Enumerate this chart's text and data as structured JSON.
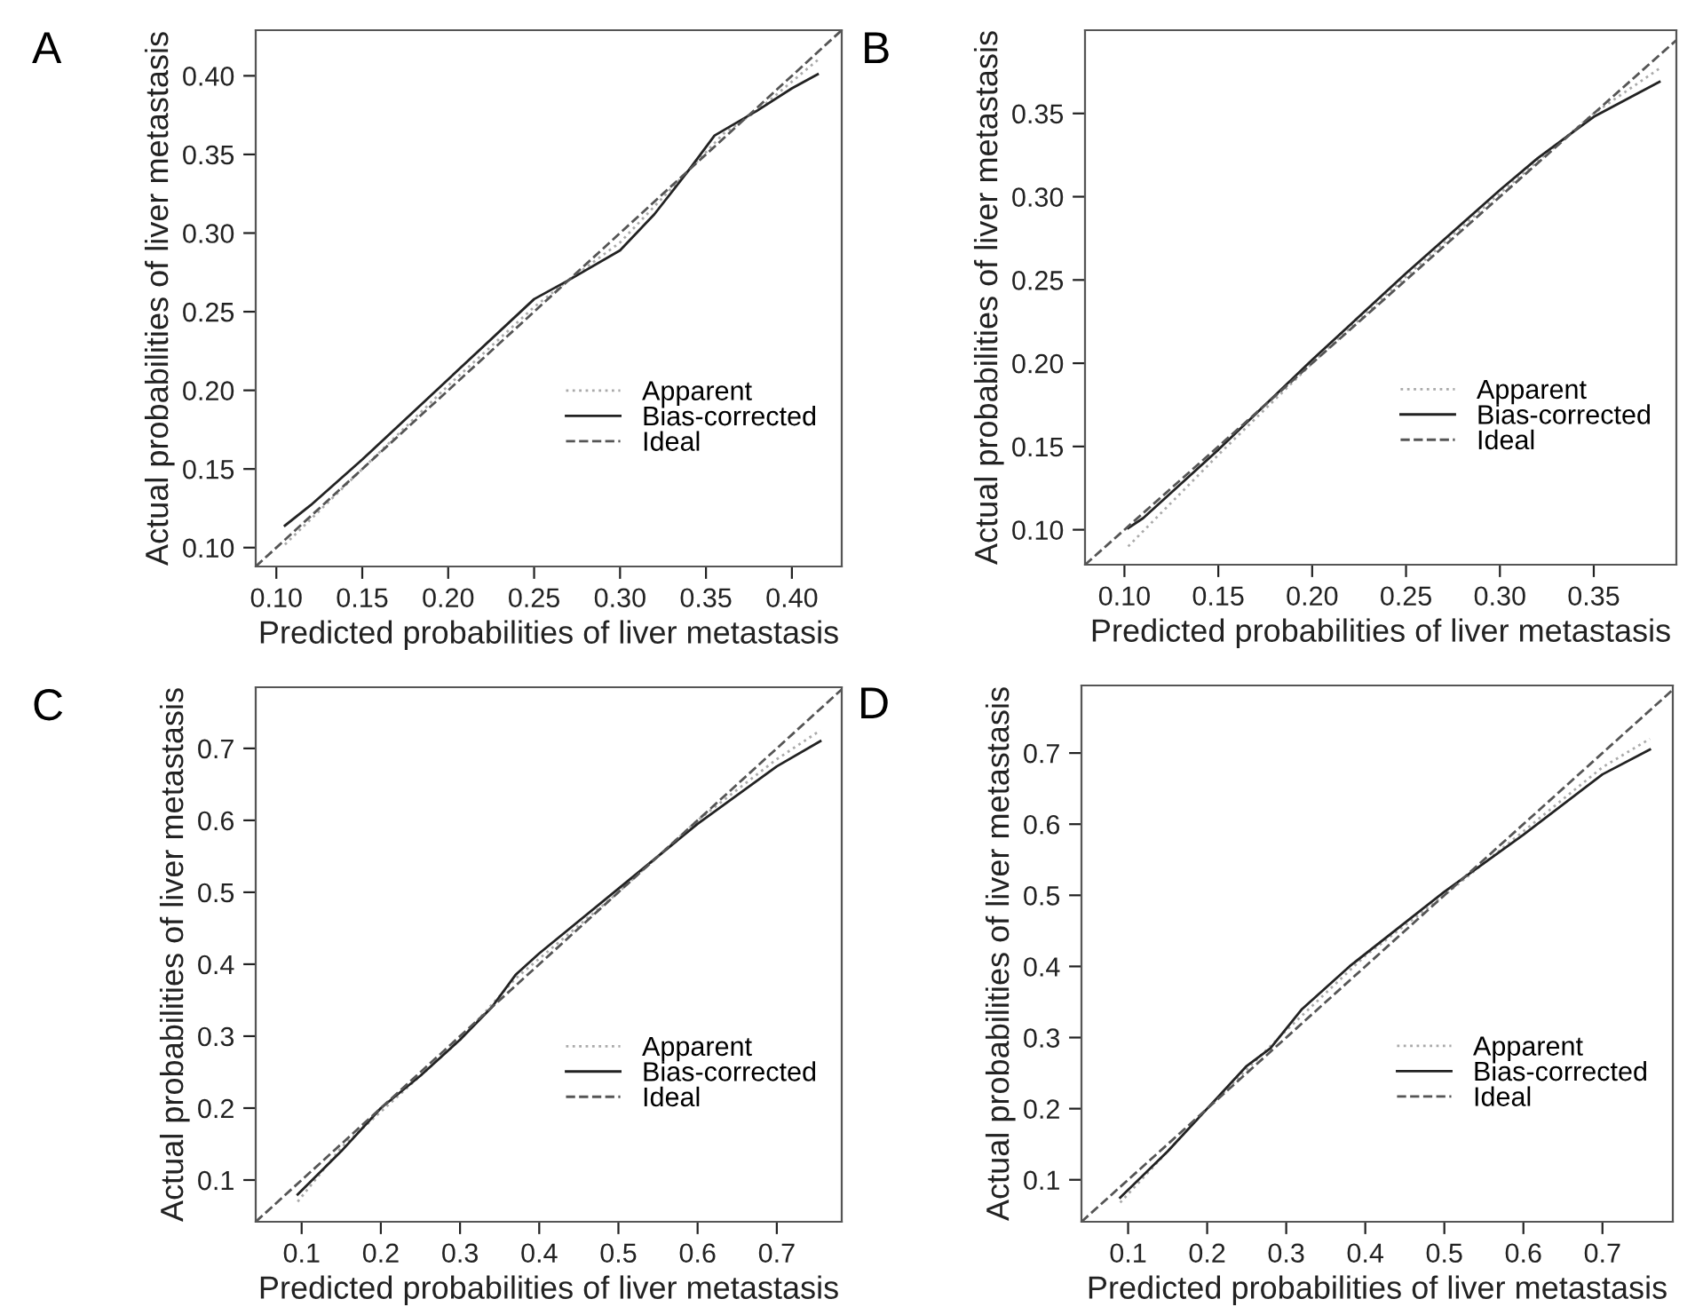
{
  "chart_data": [
    {
      "type": "line",
      "title": "A",
      "xlabel": "Predicted probabilities of liver metastasis",
      "ylabel": "Actual probabilities of liver metastasis",
      "xlim": [
        0.088,
        0.429
      ],
      "ylim": [
        0.088,
        0.429
      ],
      "xticks": [
        {
          "value": 0.1,
          "label": "0.10"
        },
        0.15,
        {
          "value": 0.2,
          "label": "0.20"
        },
        0.25,
        {
          "value": 0.3,
          "label": "0.30"
        },
        0.35,
        {
          "value": 0.4,
          "label": "0.40"
        }
      ],
      "yticks": [
        {
          "value": 0.1,
          "label": "0.10"
        },
        0.15,
        {
          "value": 0.2,
          "label": "0.20"
        },
        0.25,
        {
          "value": 0.3,
          "label": "0.30"
        },
        0.35,
        {
          "value": 0.4,
          "label": "0.40"
        }
      ],
      "grid": false,
      "legend": "bottom right",
      "marker": "none",
      "series": [
        {
          "name": "Apparent",
          "color": "#aaaaaa",
          "line_style": "dotted",
          "x": [
            0.105,
            0.15,
            0.2,
            0.25,
            0.27,
            0.3,
            0.34,
            0.36,
            0.38,
            0.415
          ],
          "values": [
            0.102,
            0.15,
            0.203,
            0.253,
            0.27,
            0.294,
            0.34,
            0.363,
            0.378,
            0.41
          ]
        },
        {
          "name": "Bias-corrected",
          "color": "#222222",
          "line_style": "solid",
          "x": [
            0.105,
            0.12,
            0.15,
            0.2,
            0.25,
            0.27,
            0.3,
            0.32,
            0.34,
            0.355,
            0.38,
            0.4,
            0.415
          ],
          "values": [
            0.114,
            0.127,
            0.156,
            0.207,
            0.258,
            0.27,
            0.289,
            0.312,
            0.34,
            0.362,
            0.378,
            0.392,
            0.401
          ]
        },
        {
          "name": "Ideal",
          "color": "#555555",
          "line_style": "dashed",
          "x": [
            0.088,
            0.429
          ],
          "values": [
            0.088,
            0.429
          ]
        }
      ]
    },
    {
      "type": "line",
      "title": "B",
      "xlabel": "Predicted probabilities of liver metastasis",
      "ylabel": "Actual probabilities of liver metastasis",
      "xlim": [
        0.079,
        0.394
      ],
      "ylim": [
        0.079,
        0.4
      ],
      "xticks": [
        {
          "value": 0.1,
          "label": "0.10"
        },
        0.15,
        {
          "value": 0.2,
          "label": "0.20"
        },
        0.25,
        {
          "value": 0.3,
          "label": "0.30"
        },
        0.35
      ],
      "yticks": [
        {
          "value": 0.1,
          "label": "0.10"
        },
        0.15,
        {
          "value": 0.2,
          "label": "0.20"
        },
        0.25,
        {
          "value": 0.3,
          "label": "0.30"
        },
        0.35
      ],
      "grid": false,
      "legend": "bottom right",
      "marker": "none",
      "series": [
        {
          "name": "Apparent",
          "color": "#aaaaaa",
          "line_style": "dotted",
          "x": [
            0.102,
            0.15,
            0.2,
            0.25,
            0.3,
            0.35,
            0.385
          ],
          "values": [
            0.09,
            0.145,
            0.2,
            0.252,
            0.302,
            0.35,
            0.377
          ]
        },
        {
          "name": "Bias-corrected",
          "color": "#222222",
          "line_style": "solid",
          "x": [
            0.102,
            0.11,
            0.15,
            0.2,
            0.25,
            0.3,
            0.32,
            0.35,
            0.37,
            0.385
          ],
          "values": [
            0.101,
            0.107,
            0.148,
            0.202,
            0.254,
            0.304,
            0.323,
            0.348,
            0.36,
            0.369
          ]
        },
        {
          "name": "Ideal",
          "color": "#555555",
          "line_style": "dashed",
          "x": [
            0.079,
            0.394
          ],
          "values": [
            0.079,
            0.394
          ]
        }
      ]
    },
    {
      "type": "line",
      "title": "C",
      "xlabel": "Predicted probabilities of liver metastasis",
      "ylabel": "Actual probabilities of liver metastasis",
      "xlim": [
        0.042,
        0.782
      ],
      "ylim": [
        0.042,
        0.785
      ],
      "xticks": [
        0.1,
        0.2,
        0.3,
        0.4,
        0.5,
        0.6,
        0.7
      ],
      "yticks": [
        0.1,
        0.2,
        0.3,
        0.4,
        0.5,
        0.6,
        0.7
      ],
      "grid": false,
      "legend": "bottom right",
      "marker": "none",
      "series": [
        {
          "name": "Apparent",
          "color": "#aaaaaa",
          "line_style": "dotted",
          "x": [
            0.095,
            0.15,
            0.3,
            0.37,
            0.5,
            0.6,
            0.7,
            0.755
          ],
          "values": [
            0.07,
            0.145,
            0.295,
            0.38,
            0.5,
            0.6,
            0.685,
            0.725
          ]
        },
        {
          "name": "Bias-corrected",
          "color": "#222222",
          "line_style": "solid",
          "x": [
            0.095,
            0.15,
            0.2,
            0.25,
            0.3,
            0.34,
            0.37,
            0.4,
            0.5,
            0.6,
            0.7,
            0.755
          ],
          "values": [
            0.08,
            0.14,
            0.2,
            0.245,
            0.295,
            0.34,
            0.385,
            0.415,
            0.505,
            0.595,
            0.675,
            0.71
          ]
        },
        {
          "name": "Ideal",
          "color": "#555555",
          "line_style": "dashed",
          "x": [
            0.042,
            0.782
          ],
          "values": [
            0.042,
            0.782
          ]
        }
      ]
    },
    {
      "type": "line",
      "title": "D",
      "xlabel": "Predicted probabilities of liver metastasis",
      "ylabel": "Actual probabilities of liver metastasis",
      "xlim": [
        0.041,
        0.789
      ],
      "ylim": [
        0.041,
        0.795
      ],
      "xticks": [
        0.1,
        0.2,
        0.3,
        0.4,
        0.5,
        0.6,
        0.7
      ],
      "yticks": [
        0.1,
        0.2,
        0.3,
        0.4,
        0.5,
        0.6,
        0.7
      ],
      "grid": false,
      "legend": "bottom right",
      "marker": "none",
      "series": [
        {
          "name": "Apparent",
          "color": "#aaaaaa",
          "line_style": "dotted",
          "x": [
            0.09,
            0.2,
            0.3,
            0.4,
            0.5,
            0.6,
            0.7,
            0.76
          ],
          "values": [
            0.068,
            0.2,
            0.31,
            0.415,
            0.5,
            0.59,
            0.68,
            0.72
          ]
        },
        {
          "name": "Bias-corrected",
          "color": "#222222",
          "line_style": "solid",
          "x": [
            0.09,
            0.15,
            0.2,
            0.25,
            0.28,
            0.32,
            0.38,
            0.5,
            0.6,
            0.7,
            0.76
          ],
          "values": [
            0.075,
            0.14,
            0.2,
            0.26,
            0.285,
            0.34,
            0.4,
            0.505,
            0.585,
            0.67,
            0.705
          ]
        },
        {
          "name": "Ideal",
          "color": "#555555",
          "line_style": "dashed",
          "x": [
            0.041,
            0.789
          ],
          "values": [
            0.041,
            0.789
          ]
        }
      ]
    }
  ]
}
